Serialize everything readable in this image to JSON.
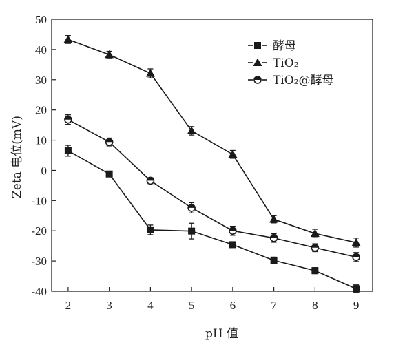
{
  "chart_data": {
    "type": "line",
    "xlabel": "pH 值",
    "ylabel": "Zeta 电位(mV)",
    "xlim": [
      1.6,
      9.4
    ],
    "ylim": [
      -40,
      50
    ],
    "xticks": [
      2,
      3,
      4,
      5,
      6,
      7,
      8,
      9
    ],
    "yticks": [
      -40,
      -30,
      -20,
      -10,
      0,
      10,
      20,
      30,
      40,
      50
    ],
    "grid": false,
    "legend_position": "top-right",
    "x": [
      2,
      3,
      4,
      5,
      6,
      7,
      8,
      9
    ],
    "series": [
      {
        "name": "酵母",
        "marker": "square",
        "values": [
          6.5,
          -1.2,
          -19.7,
          -20.1,
          -24.6,
          -29.8,
          -33.2,
          -39.2
        ],
        "errors": [
          1.8,
          0.5,
          1.6,
          2.6,
          0.7,
          1.1,
          1.0,
          1.3
        ]
      },
      {
        "name": "TiO₂",
        "marker": "triangle",
        "values": [
          43.3,
          38.3,
          32.1,
          13.1,
          5.3,
          -16.2,
          -20.9,
          -23.9
        ],
        "errors": [
          1.3,
          1.1,
          1.5,
          1.4,
          1.3,
          1.2,
          1.4,
          1.5
        ]
      },
      {
        "name": "TiO₂@酵母",
        "marker": "circle-half",
        "values": [
          16.8,
          9.4,
          -3.4,
          -12.4,
          -20.0,
          -22.4,
          -25.6,
          -28.7
        ],
        "errors": [
          1.6,
          1.3,
          1.0,
          1.7,
          1.5,
          1.4,
          1.3,
          1.5
        ]
      }
    ]
  },
  "colors": {
    "line": "#1a1a1a",
    "axis": "#222222"
  }
}
